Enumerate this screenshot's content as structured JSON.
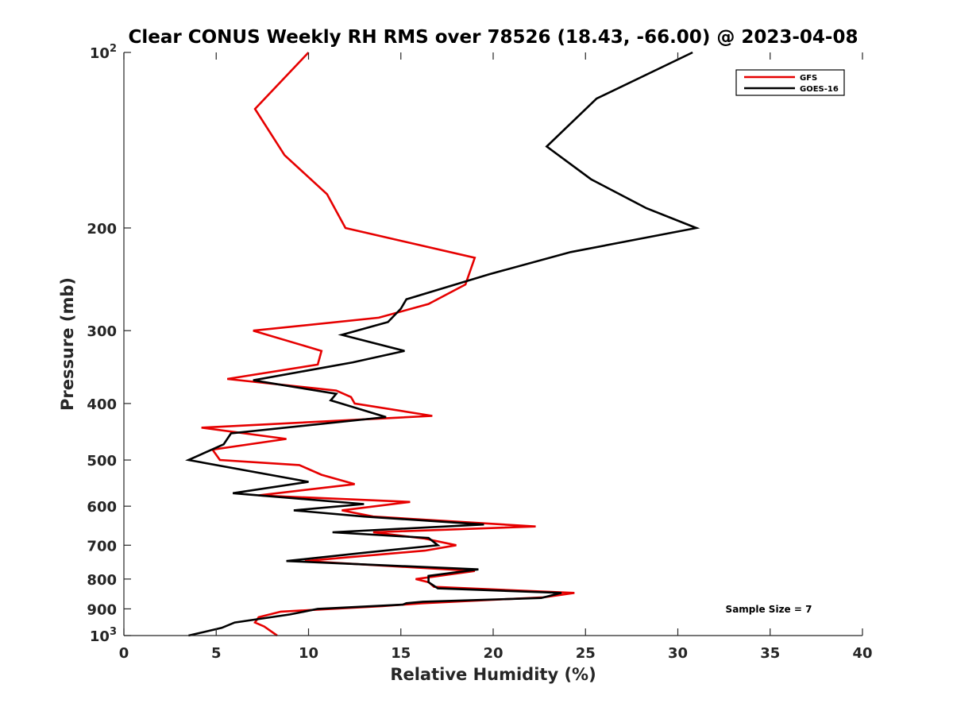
{
  "chart_data": {
    "type": "line",
    "title": "Clear CONUS Weekly RH RMS over 78526 (18.43, -66.00) @ 2023-04-08",
    "xlabel": "Relative Humidity (%)",
    "ylabel": "Pressure (mb)",
    "xlim": [
      0,
      40
    ],
    "ylim": [
      100,
      1000
    ],
    "yscale": "log",
    "y_reversed": true,
    "x_ticks": [
      "0",
      "5",
      "10",
      "15",
      "20",
      "25",
      "30",
      "35",
      "40"
    ],
    "x_tick_values": [
      0,
      5,
      10,
      15,
      20,
      25,
      30,
      35,
      40
    ],
    "y_ticks": [
      {
        "value": 100,
        "base": "10",
        "exp": "2"
      },
      {
        "value": 200,
        "label": "200"
      },
      {
        "value": 300,
        "label": "300"
      },
      {
        "value": 400,
        "label": "400"
      },
      {
        "value": 500,
        "label": "500"
      },
      {
        "value": 600,
        "label": "600"
      },
      {
        "value": 700,
        "label": "700"
      },
      {
        "value": 800,
        "label": "800"
      },
      {
        "value": 900,
        "label": "900"
      },
      {
        "value": 1000,
        "base": "10",
        "exp": "3"
      }
    ],
    "grid": false,
    "legend_position": "top-right",
    "series": [
      {
        "name": "GFS",
        "color": "#e60000",
        "points": [
          [
            10.0,
            100
          ],
          [
            7.1,
            125
          ],
          [
            8.7,
            150
          ],
          [
            11.0,
            175
          ],
          [
            12.0,
            200
          ],
          [
            19.0,
            225
          ],
          [
            18.5,
            250
          ],
          [
            16.5,
            270
          ],
          [
            13.8,
            285
          ],
          [
            7.0,
            300
          ],
          [
            10.7,
            325
          ],
          [
            10.5,
            343
          ],
          [
            5.6,
            363
          ],
          [
            11.5,
            380
          ],
          [
            12.3,
            390
          ],
          [
            12.5,
            400
          ],
          [
            16.7,
            420
          ],
          [
            4.2,
            440
          ],
          [
            8.8,
            460
          ],
          [
            4.8,
            480
          ],
          [
            5.2,
            500
          ],
          [
            9.5,
            510
          ],
          [
            10.7,
            530
          ],
          [
            12.5,
            550
          ],
          [
            7.3,
            575
          ],
          [
            15.5,
            590
          ],
          [
            11.8,
            610
          ],
          [
            13.5,
            625
          ],
          [
            22.3,
            650
          ],
          [
            13.5,
            665
          ],
          [
            16.3,
            682
          ],
          [
            18.0,
            700
          ],
          [
            16.3,
            715
          ],
          [
            9.8,
            745
          ],
          [
            19.0,
            775
          ],
          [
            15.8,
            800
          ],
          [
            16.5,
            810
          ],
          [
            16.8,
            825
          ],
          [
            24.4,
            845
          ],
          [
            22.7,
            860
          ],
          [
            16.2,
            880
          ],
          [
            14.0,
            890
          ],
          [
            8.5,
            910
          ],
          [
            7.3,
            930
          ],
          [
            7.1,
            950
          ],
          [
            7.6,
            965
          ],
          [
            8.3,
            1000
          ]
        ]
      },
      {
        "name": "GOES-16",
        "color": "#000000",
        "points": [
          [
            30.8,
            100
          ],
          [
            25.6,
            120
          ],
          [
            22.9,
            145
          ],
          [
            25.3,
            165
          ],
          [
            28.3,
            185
          ],
          [
            31.0,
            200
          ],
          [
            24.2,
            220
          ],
          [
            19.8,
            240
          ],
          [
            15.3,
            265
          ],
          [
            15.0,
            275
          ],
          [
            14.3,
            290
          ],
          [
            11.8,
            305
          ],
          [
            15.2,
            325
          ],
          [
            12.4,
            340
          ],
          [
            7.0,
            365
          ],
          [
            11.5,
            385
          ],
          [
            11.2,
            395
          ],
          [
            14.2,
            422
          ],
          [
            5.8,
            450
          ],
          [
            5.4,
            470
          ],
          [
            3.5,
            500
          ],
          [
            10.0,
            545
          ],
          [
            5.9,
            570
          ],
          [
            13.0,
            595
          ],
          [
            9.2,
            610
          ],
          [
            13.0,
            625
          ],
          [
            19.5,
            645
          ],
          [
            11.3,
            665
          ],
          [
            16.5,
            680
          ],
          [
            17.0,
            700
          ],
          [
            13.2,
            720
          ],
          [
            8.8,
            745
          ],
          [
            19.2,
            770
          ],
          [
            16.5,
            790
          ],
          [
            16.5,
            810
          ],
          [
            17.0,
            830
          ],
          [
            23.7,
            845
          ],
          [
            22.6,
            862
          ],
          [
            16.2,
            875
          ],
          [
            15.3,
            880
          ],
          [
            15.1,
            885
          ],
          [
            10.5,
            900
          ],
          [
            9.0,
            920
          ],
          [
            6.0,
            950
          ],
          [
            5.3,
            970
          ],
          [
            3.5,
            1000
          ]
        ]
      }
    ],
    "annotations": [
      {
        "text": "Sample Size = 7",
        "position": "bottom-right"
      }
    ]
  }
}
